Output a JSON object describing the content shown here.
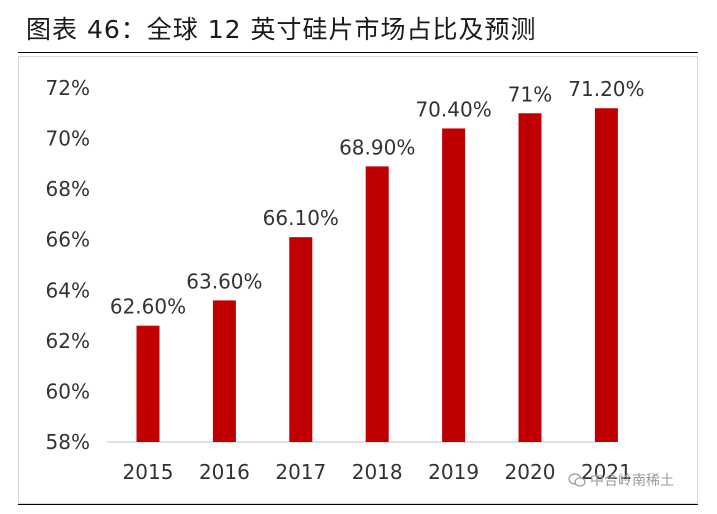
{
  "title": "图表 46：全球 12 英寸硅片市场占比及预测",
  "watermark": {
    "text": "中合岭南稀土",
    "icon": "wechat-icon"
  },
  "colors": {
    "bar": "#c00000",
    "text": "#333333",
    "axis": "#bfbfbf"
  },
  "chart_data": {
    "type": "bar",
    "title": "",
    "xlabel": "",
    "ylabel": "",
    "categories": [
      "2015",
      "2016",
      "2017",
      "2018",
      "2019",
      "2020",
      "2021"
    ],
    "values": [
      62.6,
      63.6,
      66.1,
      68.9,
      70.4,
      71.0,
      71.2
    ],
    "data_labels": [
      "62.60%",
      "63.60%",
      "66.10%",
      "68.90%",
      "70.40%",
      "71%",
      "71.20%"
    ],
    "ylim": [
      58,
      72
    ],
    "yticks": [
      "58%",
      "60%",
      "62%",
      "64%",
      "66%",
      "68%",
      "70%",
      "72%"
    ],
    "grid": false,
    "legend": "none"
  }
}
